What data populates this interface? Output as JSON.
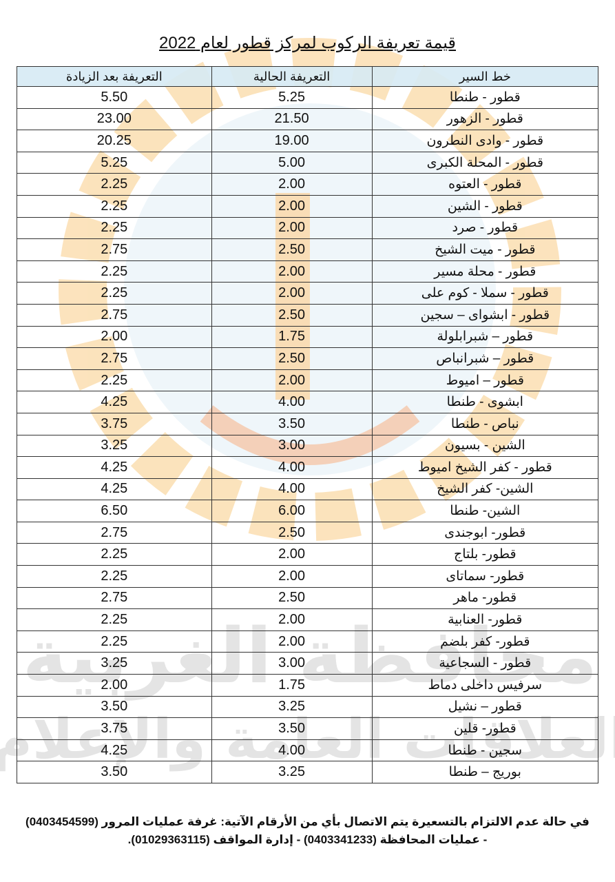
{
  "title": "قيمة تعريفة الركوب لمركز قطور لعام 2022",
  "table": {
    "headers": [
      "خط السير",
      "التعريفة الحالية",
      "التعريفة بعد الزيادة"
    ],
    "rows": [
      [
        "قطور - طنطا",
        "5.25",
        "5.50"
      ],
      [
        "قطور - الزهور",
        "21.50",
        "23.00"
      ],
      [
        "قطور - وادى النطرون",
        "19.00",
        "20.25"
      ],
      [
        "قطور - المحلة الكبرى",
        "5.00",
        "5.25"
      ],
      [
        "قطور - العتوه",
        "2.00",
        "2.25"
      ],
      [
        "قطور - الشين",
        "2.00",
        "2.25"
      ],
      [
        "قطور - صرد",
        "2.00",
        "2.25"
      ],
      [
        "قطور - ميت الشيخ",
        "2.50",
        "2.75"
      ],
      [
        "قطور - محلة مسير",
        "2.00",
        "2.25"
      ],
      [
        "قطور - سملا - كوم على",
        "2.00",
        "2.25"
      ],
      [
        "قطور - ابشواى – سجين",
        "2.50",
        "2.75"
      ],
      [
        "قطور – شبرابلولة",
        "1.75",
        "2.00"
      ],
      [
        "قطور – شبرانباص",
        "2.50",
        "2.75"
      ],
      [
        "قطور – اميوط",
        "2.00",
        "2.25"
      ],
      [
        "ابشوى - طنطا",
        "4.00",
        "4.25"
      ],
      [
        "نباص - طنطا",
        "3.50",
        "3.75"
      ],
      [
        "الشين - بسيون",
        "3.00",
        "3.25"
      ],
      [
        "قطور - كفر الشيخ اميوط",
        "4.00",
        "4.25"
      ],
      [
        "الشين- كفر الشيخ",
        "4.00",
        "4.25"
      ],
      [
        "الشين- طنطا",
        "6.00",
        "6.50"
      ],
      [
        "قطور- ابوجندى",
        "2.50",
        "2.75"
      ],
      [
        "قطور- بلتاج",
        "2.00",
        "2.25"
      ],
      [
        "قطور- سماتاى",
        "2.00",
        "2.25"
      ],
      [
        "قطور- ماهر",
        "2.50",
        "2.75"
      ],
      [
        "قطور- العنابية",
        "2.00",
        "2.25"
      ],
      [
        "قطور- كفر بلضم",
        "2.00",
        "2.25"
      ],
      [
        "قطور - السجاعية",
        "3.00",
        "3.25"
      ],
      [
        "سرفيس داخلى دماط",
        "1.75",
        "2.00"
      ],
      [
        "قطور – نشيل",
        "3.25",
        "3.50"
      ],
      [
        "قطور- قلين",
        "3.50",
        "3.75"
      ],
      [
        "سجين - طنطا",
        "4.00",
        "4.25"
      ],
      [
        "بوريج – طنطا",
        "3.25",
        "3.50"
      ]
    ]
  },
  "footer": {
    "line1": "في حالة عدم الالتزام بالتسعيرة يتم الاتصال بأي من الأرقام الآتية: غرفة عمليات المرور (0403454599)",
    "line2": "- عمليات المحافظة (0403341233) - إدارة المواقف (01029363115)."
  },
  "watermark": {
    "line1": "محافظة الغربية",
    "line2": "العلاقات العامة والإعلام"
  },
  "colors": {
    "header_bg": "#d6eaf4",
    "watermark_orange": "#f5b041",
    "watermark_blue": "#d4e6f1",
    "watermark_gray": "#c8c8c8"
  }
}
